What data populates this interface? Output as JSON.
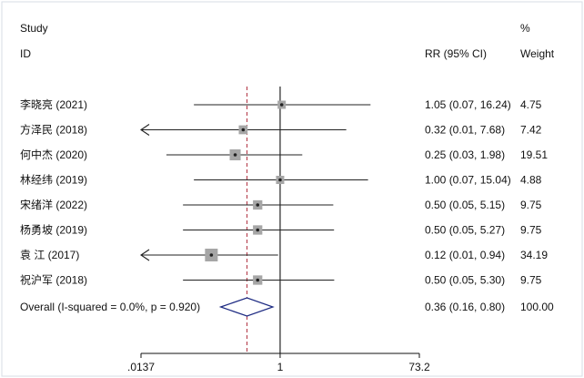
{
  "chart_data": {
    "type": "forest",
    "headers": {
      "study_line1": "Study",
      "study_line2": "ID",
      "effect": "RR (95% CI)",
      "weight_line1": "%",
      "weight_line2": "Weight"
    },
    "scale": "log",
    "x_ticks": [
      {
        "value": 0.0137,
        "label": ".0137"
      },
      {
        "value": 1,
        "label": "1"
      },
      {
        "value": 73.2,
        "label": "73.2"
      }
    ],
    "studies": [
      {
        "label": "李晓亮 (2021)",
        "rr": 1.05,
        "lo": 0.07,
        "hi": 16.24,
        "ci_text": "1.05 (0.07, 16.24)",
        "weight": 4.75,
        "weight_text": "4.75"
      },
      {
        "label": "方泽民 (2018)",
        "rr": 0.32,
        "lo": 0.01,
        "hi": 7.68,
        "ci_text": "0.32 (0.01, 7.68)",
        "weight": 7.42,
        "weight_text": "7.42"
      },
      {
        "label": "何中杰 (2020)",
        "rr": 0.25,
        "lo": 0.03,
        "hi": 1.98,
        "ci_text": "0.25 (0.03, 1.98)",
        "weight": 19.51,
        "weight_text": "19.51"
      },
      {
        "label": "林经纬 (2019)",
        "rr": 1.0,
        "lo": 0.07,
        "hi": 15.04,
        "ci_text": "1.00 (0.07, 15.04)",
        "weight": 4.88,
        "weight_text": "4.88"
      },
      {
        "label": "宋绪洋 (2022)",
        "rr": 0.5,
        "lo": 0.05,
        "hi": 5.15,
        "ci_text": "0.50 (0.05, 5.15)",
        "weight": 9.75,
        "weight_text": "9.75"
      },
      {
        "label": "杨勇坡 (2019)",
        "rr": 0.5,
        "lo": 0.05,
        "hi": 5.27,
        "ci_text": "0.50 (0.05, 5.27)",
        "weight": 9.75,
        "weight_text": "9.75"
      },
      {
        "label": "袁 江 (2017)",
        "rr": 0.12,
        "lo": 0.01,
        "hi": 0.94,
        "ci_text": "0.12 (0.01, 0.94)",
        "weight": 34.19,
        "weight_text": "34.19"
      },
      {
        "label": "祝沪军 (2018)",
        "rr": 0.5,
        "lo": 0.05,
        "hi": 5.3,
        "ci_text": "0.50 (0.05, 5.30)",
        "weight": 9.75,
        "weight_text": "9.75"
      }
    ],
    "overall": {
      "label": "Overall  (I-squared = 0.0%, p = 0.920)",
      "rr": 0.36,
      "lo": 0.16,
      "hi": 0.8,
      "ci_text": "0.36 (0.16, 0.80)",
      "weight_text": "100.00"
    },
    "colors": {
      "ci_line": "#222222",
      "box": "#a6a6a6",
      "reference_line": "#b03040",
      "diamond": "#1d2a82"
    }
  }
}
